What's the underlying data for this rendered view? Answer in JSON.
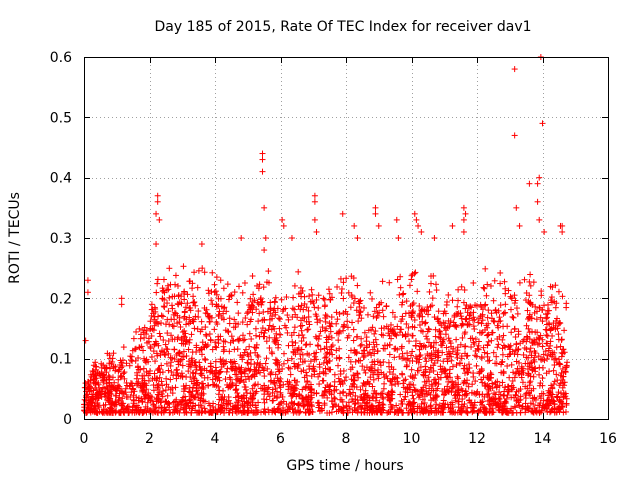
{
  "chart_data": {
    "type": "scatter",
    "title": "Day 185 of 2015, Rate Of TEC Index for receiver dav1",
    "xlabel": "GPS time / hours",
    "ylabel": "ROTI / TECUs",
    "xlim": [
      0,
      16
    ],
    "ylim": [
      0,
      0.6
    ],
    "xticks": [
      0,
      2,
      4,
      6,
      8,
      10,
      12,
      14,
      16
    ],
    "yticks": [
      0,
      0.1,
      0.2,
      0.3,
      0.4,
      0.5,
      0.6
    ],
    "xtick_labels": [
      "0",
      "2",
      "4",
      "6",
      "8",
      "10",
      "12",
      "14",
      "16"
    ],
    "ytick_labels": [
      "0",
      "0.1",
      "0.2",
      "0.3",
      "0.4",
      "0.5",
      "0.6"
    ],
    "grid": true,
    "marker": "+",
    "color": "#ff0000",
    "series": [
      {
        "name": "dav1",
        "outliers": [
          [
            0.05,
            0.13
          ],
          [
            0.12,
            0.23
          ],
          [
            0.12,
            0.21
          ],
          [
            1.15,
            0.2
          ],
          [
            1.15,
            0.19
          ],
          [
            2.25,
            0.37
          ],
          [
            2.25,
            0.36
          ],
          [
            2.2,
            0.34
          ],
          [
            2.3,
            0.33
          ],
          [
            2.2,
            0.29
          ],
          [
            3.6,
            0.29
          ],
          [
            4.8,
            0.3
          ],
          [
            5.45,
            0.44
          ],
          [
            5.45,
            0.43
          ],
          [
            5.45,
            0.41
          ],
          [
            5.5,
            0.35
          ],
          [
            5.55,
            0.3
          ],
          [
            5.5,
            0.28
          ],
          [
            6.05,
            0.33
          ],
          [
            6.1,
            0.32
          ],
          [
            6.35,
            0.3
          ],
          [
            7.05,
            0.37
          ],
          [
            7.05,
            0.36
          ],
          [
            7.05,
            0.33
          ],
          [
            7.1,
            0.31
          ],
          [
            7.9,
            0.34
          ],
          [
            8.25,
            0.32
          ],
          [
            8.35,
            0.3
          ],
          [
            8.9,
            0.35
          ],
          [
            8.9,
            0.34
          ],
          [
            9.0,
            0.32
          ],
          [
            9.55,
            0.33
          ],
          [
            9.6,
            0.3
          ],
          [
            10.1,
            0.34
          ],
          [
            10.15,
            0.33
          ],
          [
            10.2,
            0.32
          ],
          [
            10.3,
            0.31
          ],
          [
            10.7,
            0.3
          ],
          [
            11.25,
            0.32
          ],
          [
            11.6,
            0.35
          ],
          [
            11.65,
            0.34
          ],
          [
            11.6,
            0.33
          ],
          [
            11.6,
            0.31
          ],
          [
            13.15,
            0.58
          ],
          [
            13.15,
            0.47
          ],
          [
            13.2,
            0.35
          ],
          [
            13.3,
            0.32
          ],
          [
            13.6,
            0.39
          ],
          [
            13.85,
            0.39
          ],
          [
            13.9,
            0.4
          ],
          [
            13.85,
            0.36
          ],
          [
            13.9,
            0.33
          ],
          [
            13.95,
            0.6
          ],
          [
            14.0,
            0.49
          ],
          [
            14.05,
            0.31
          ],
          [
            14.55,
            0.32
          ],
          [
            14.6,
            0.32
          ],
          [
            14.6,
            0.31
          ]
        ]
      }
    ]
  }
}
